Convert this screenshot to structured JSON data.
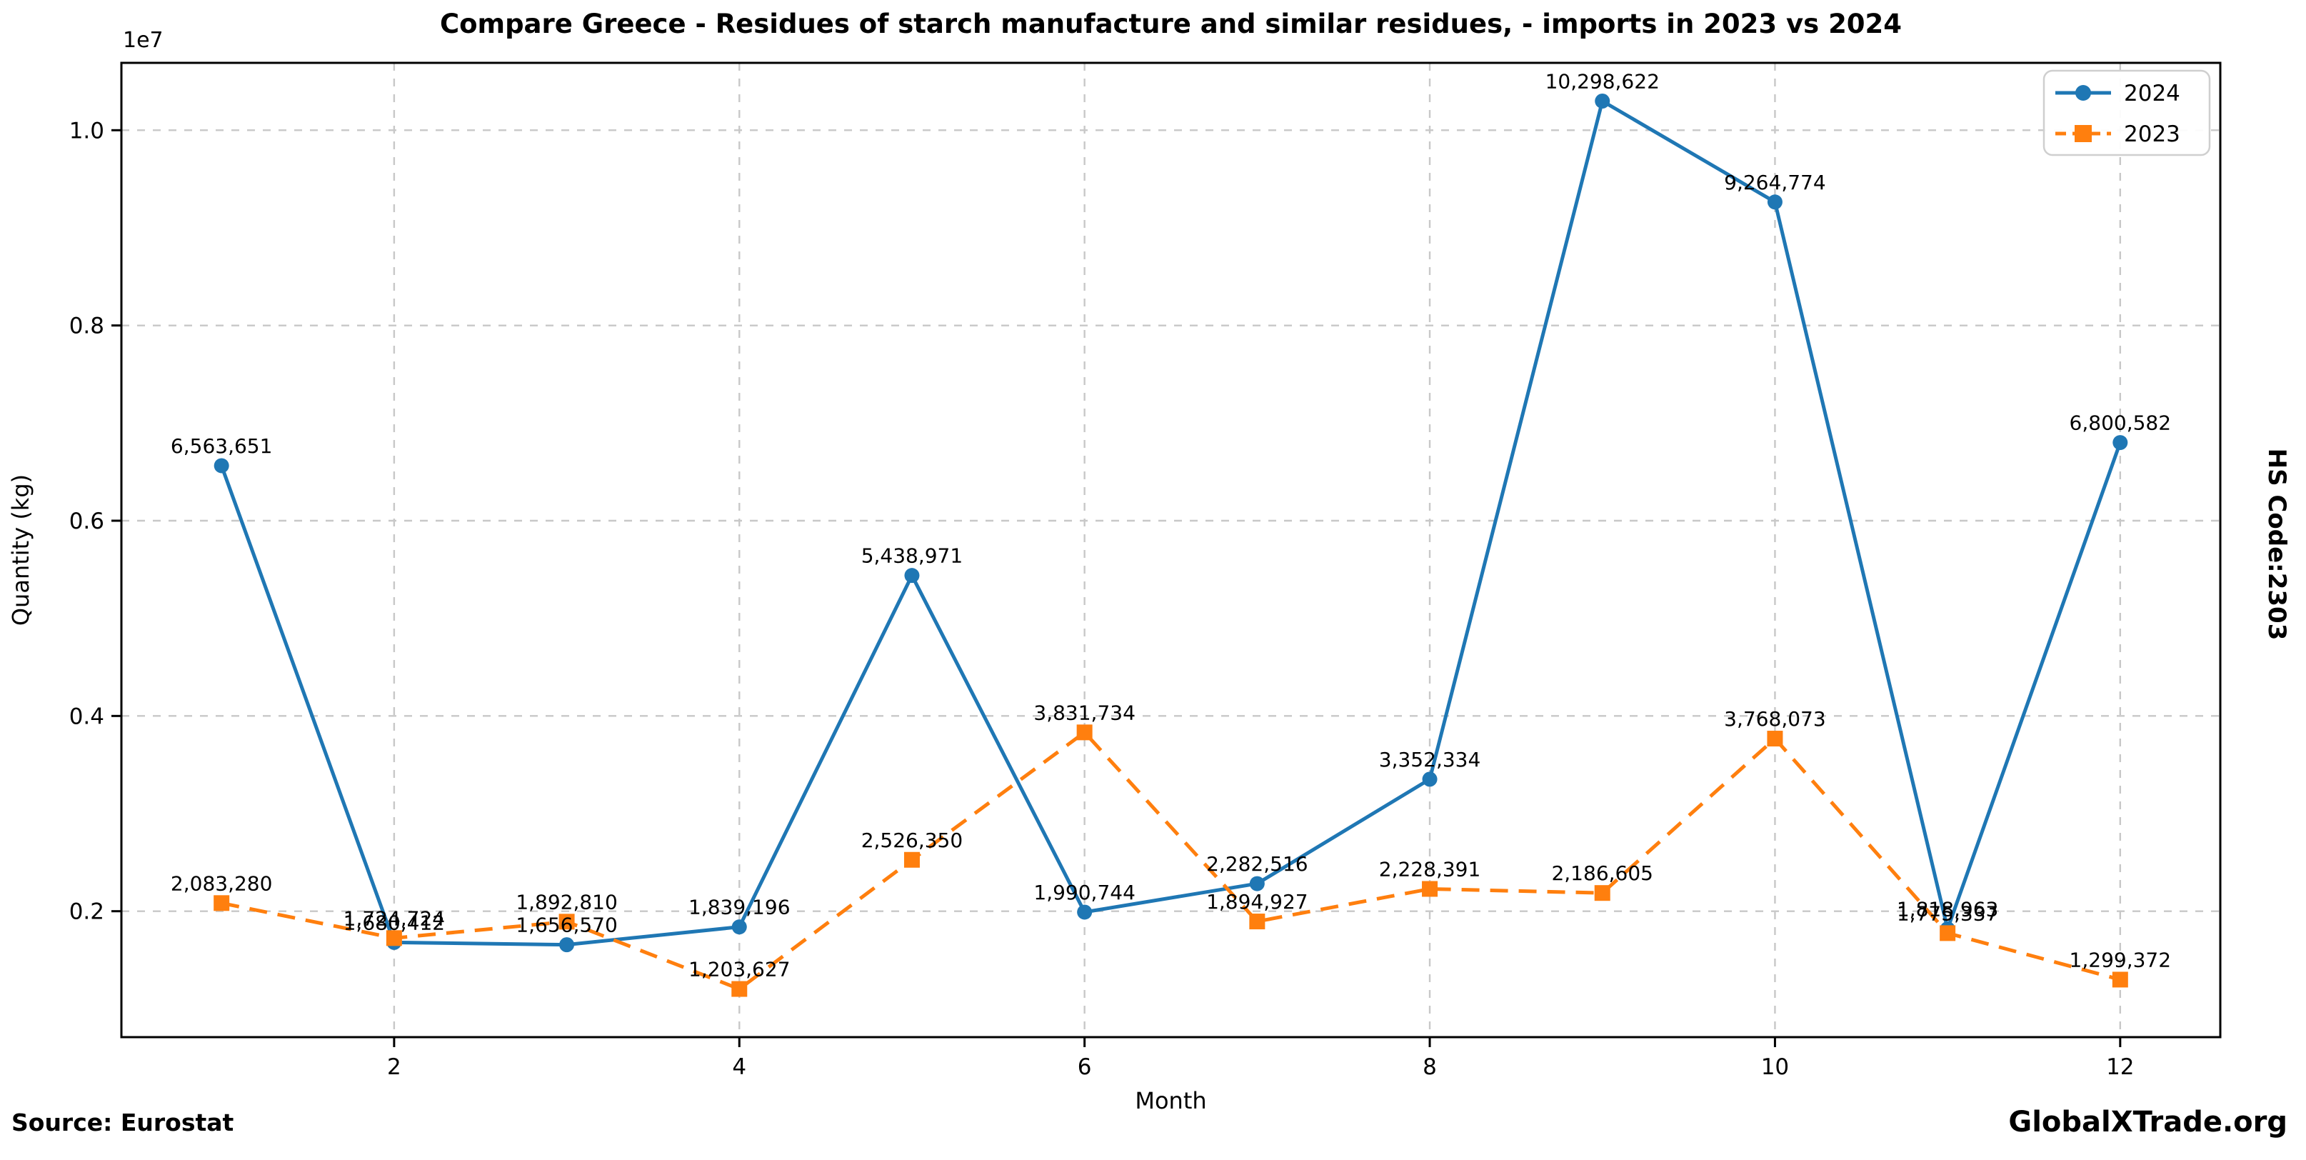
{
  "title": "Compare Greece - Residues of starch manufacture and similar residues, - imports in 2023 vs 2024",
  "right_label": "HS Code:2303",
  "footer": {
    "source": "Source: Eurostat",
    "brand": "GlobalXTrade.org"
  },
  "colors": {
    "series_2024": "#1f77b4",
    "series_2023": "#ff7f0e",
    "grid": "#c8c8c8",
    "spine": "#000000",
    "legend_border": "#cfcfcf"
  },
  "chart_data": {
    "type": "line",
    "title": "Compare Greece - Residues of starch manufacture and similar residues, - imports in 2023 vs 2024",
    "xlabel": "Month",
    "ylabel": "Quantity (kg)",
    "offset_text": "1e7",
    "x": [
      1,
      2,
      3,
      4,
      5,
      6,
      7,
      8,
      9,
      10,
      11,
      12
    ],
    "x_ticks": [
      2,
      4,
      6,
      8,
      10,
      12
    ],
    "y_ticks": [
      2000000,
      4000000,
      6000000,
      8000000,
      10000000
    ],
    "y_tick_labels": [
      "0.2",
      "0.4",
      "0.6",
      "0.8",
      "1.0"
    ],
    "xlim": [
      0.42,
      12.58
    ],
    "ylim": [
      710000,
      10690000
    ],
    "grid": true,
    "legend_position": "upper right",
    "series": [
      {
        "name": "2024",
        "color": "#1f77b4",
        "line_style": "solid",
        "marker": "circle",
        "values": [
          6563651,
          1680412,
          1656570,
          1839196,
          5438971,
          1990744,
          2282516,
          3352334,
          10298622,
          9264774,
          1818963,
          6800582
        ]
      },
      {
        "name": "2023",
        "color": "#ff7f0e",
        "line_style": "dashed",
        "marker": "square",
        "values": [
          2083280,
          1724724,
          1892810,
          1203627,
          2526350,
          3831734,
          1894927,
          2228391,
          2186605,
          3768073,
          1775337,
          1299372
        ]
      }
    ]
  }
}
